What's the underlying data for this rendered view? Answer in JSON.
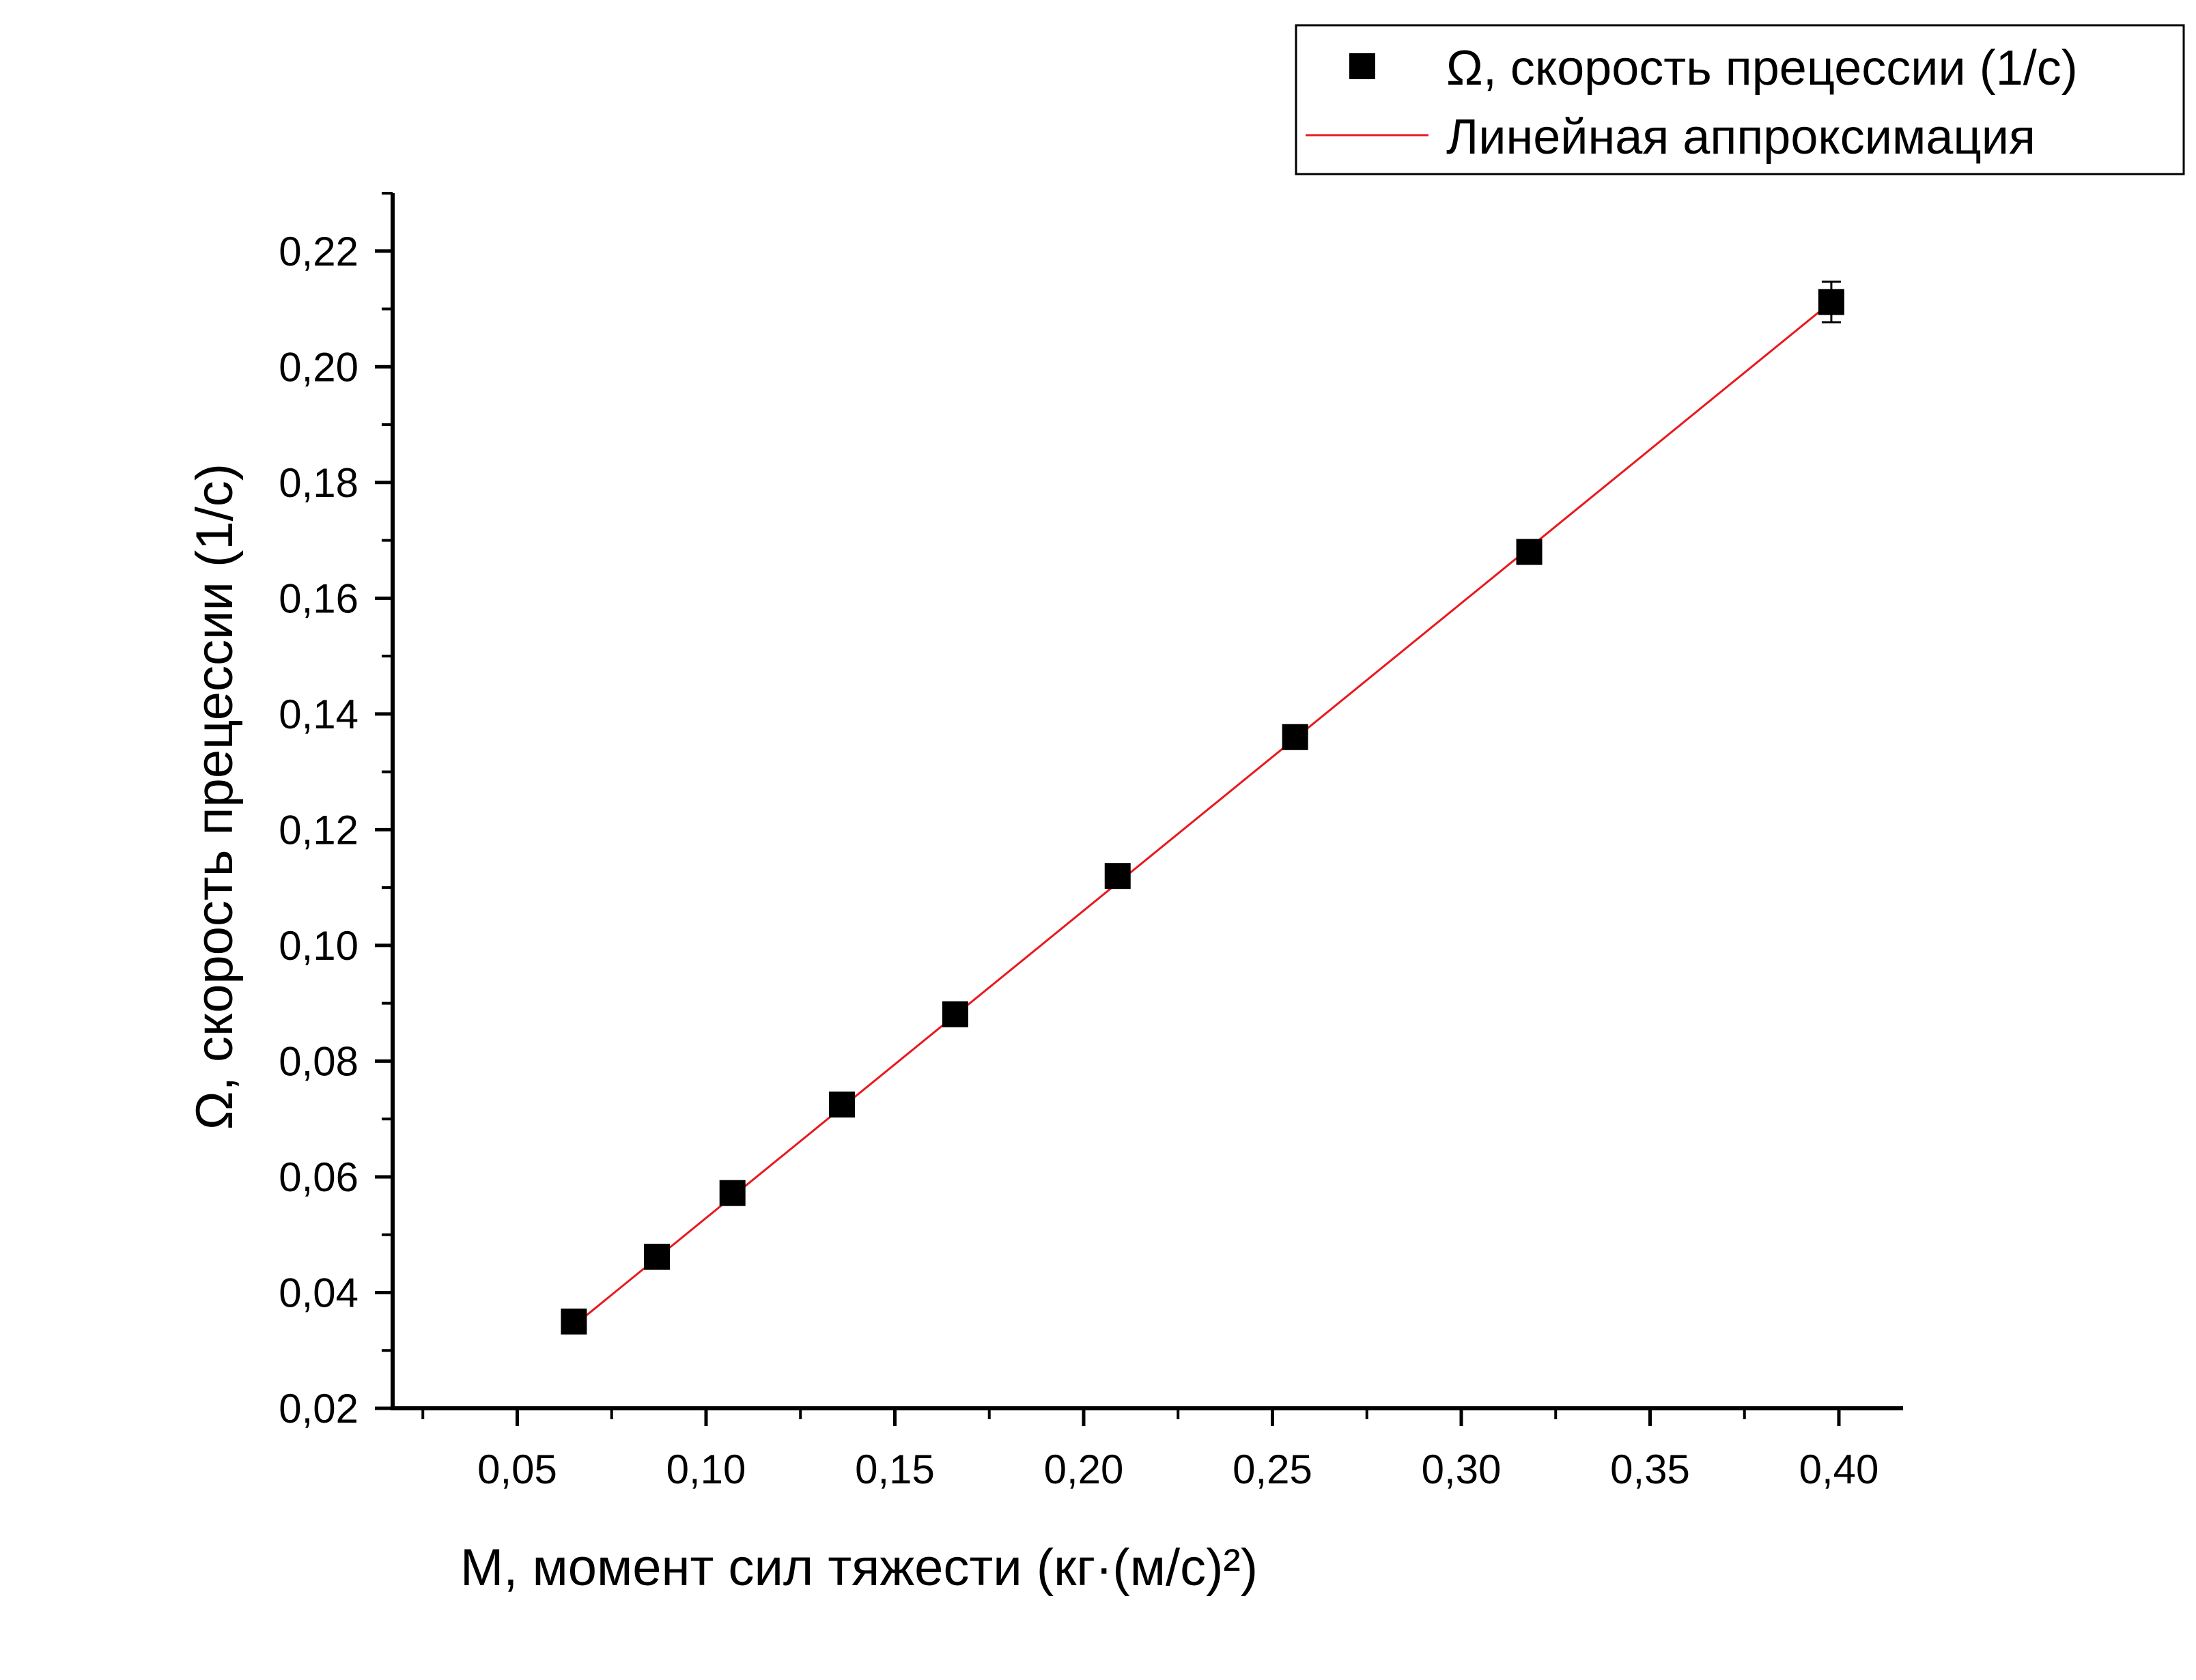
{
  "chart_data": {
    "type": "scatter",
    "xlabel": "M, момент сил тяжести (кг·(м/с)²)",
    "ylabel": "Ω, скорость прецессии (1/с)",
    "xlim": [
      0.017,
      0.417
    ],
    "ylim": [
      0.02,
      0.23
    ],
    "x_ticks": [
      0.05,
      0.1,
      0.15,
      0.2,
      0.25,
      0.3,
      0.35,
      0.4
    ],
    "x_tick_labels": [
      "0,05",
      "0,10",
      "0,15",
      "0,20",
      "0,25",
      "0,30",
      "0,35",
      "0,40"
    ],
    "y_ticks": [
      0.02,
      0.04,
      0.06,
      0.08,
      0.1,
      0.12,
      0.14,
      0.16,
      0.18,
      0.2,
      0.22
    ],
    "y_tick_labels": [
      "0,02",
      "0,04",
      "0,06",
      "0,08",
      "0,10",
      "0,12",
      "0,14",
      "0,16",
      "0,18",
      "0,20",
      "0,22"
    ],
    "grid": false,
    "legend_position": "top-right",
    "series": [
      {
        "name": "Ω, скорость прецессии (1/с)",
        "marker": "square",
        "color": "#000000",
        "x": [
          0.065,
          0.087,
          0.107,
          0.136,
          0.166,
          0.209,
          0.256,
          0.318,
          0.398
        ],
        "y": [
          0.035,
          0.0462,
          0.0572,
          0.0725,
          0.0881,
          0.112,
          0.136,
          0.168,
          0.2112
        ],
        "y_err": [
          0,
          0,
          0,
          0,
          0,
          0,
          0,
          0,
          0.0035
        ]
      },
      {
        "name": "Линейная аппроксимация",
        "type": "line",
        "color": "#e8191e",
        "x": [
          0.065,
          0.398
        ],
        "y": [
          0.0343,
          0.2112
        ]
      }
    ]
  }
}
